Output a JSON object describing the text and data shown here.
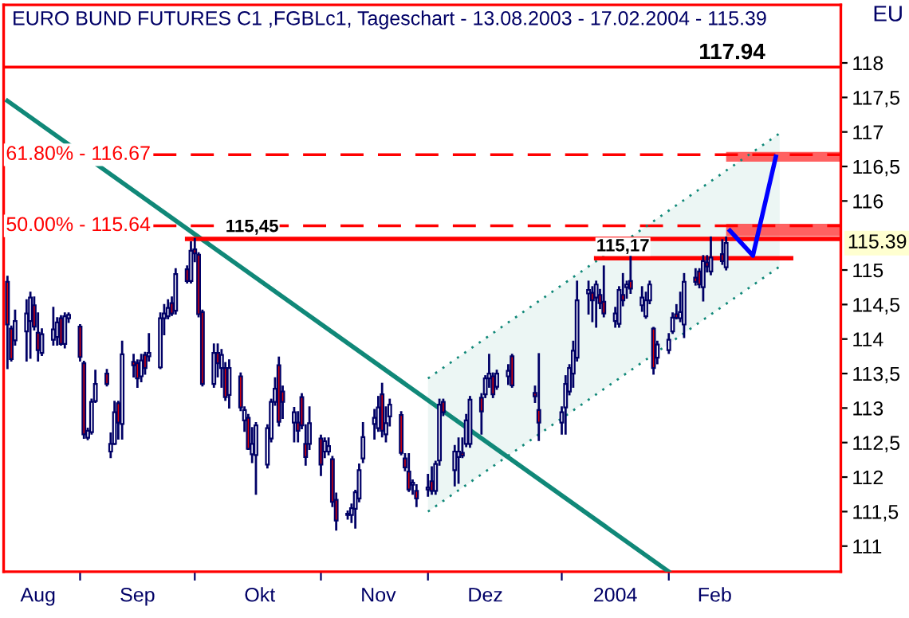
{
  "chart_data": {
    "type": "candlestick",
    "title": "EURO BUND FUTURES C1 ,FGBLc1, Tageschart - 13.08.2003 - 17.02.2004 - 115.39",
    "color": "#000066",
    "x": [
      "2003-08-13",
      "2003-08-14",
      "2003-08-15",
      "2003-08-18",
      "2003-08-19",
      "2003-08-20",
      "2003-08-21",
      "2003-08-22",
      "2003-08-25",
      "2003-08-26",
      "2003-08-27",
      "2003-08-28",
      "2003-08-29",
      "2003-09-01",
      "2003-09-02",
      "2003-09-03",
      "2003-09-04",
      "2003-09-05",
      "2003-09-08",
      "2003-09-09",
      "2003-09-10",
      "2003-09-11",
      "2003-09-12",
      "2003-09-15",
      "2003-09-16",
      "2003-09-17",
      "2003-09-18",
      "2003-09-19",
      "2003-09-22",
      "2003-09-23",
      "2003-09-24",
      "2003-09-25",
      "2003-09-26",
      "2003-09-29",
      "2003-09-30",
      "2003-10-01",
      "2003-10-02",
      "2003-10-03",
      "2003-10-06",
      "2003-10-07",
      "2003-10-08",
      "2003-10-09",
      "2003-10-10",
      "2003-10-13",
      "2003-10-14",
      "2003-10-15",
      "2003-10-16",
      "2003-10-17",
      "2003-10-20",
      "2003-10-21",
      "2003-10-22",
      "2003-10-23",
      "2003-10-24",
      "2003-10-27",
      "2003-10-28",
      "2003-10-29",
      "2003-10-30",
      "2003-10-31",
      "2003-11-03",
      "2003-11-04",
      "2003-11-05",
      "2003-11-06",
      "2003-11-07",
      "2003-11-10",
      "2003-11-11",
      "2003-11-12",
      "2003-11-13",
      "2003-11-14",
      "2003-11-17",
      "2003-11-18",
      "2003-11-19",
      "2003-11-20",
      "2003-11-21",
      "2003-11-24",
      "2003-11-25",
      "2003-11-26",
      "2003-11-27",
      "2003-11-28",
      "2003-12-01",
      "2003-12-02",
      "2003-12-03",
      "2003-12-04",
      "2003-12-05",
      "2003-12-08",
      "2003-12-09",
      "2003-12-10",
      "2003-12-11",
      "2003-12-12",
      "2003-12-15",
      "2003-12-16",
      "2003-12-17",
      "2003-12-18",
      "2003-12-19",
      "2003-12-22",
      "2003-12-23",
      "2003-12-29",
      "2003-12-30",
      "2004-01-05",
      "2004-01-06",
      "2004-01-07",
      "2004-01-08",
      "2004-01-09",
      "2004-01-12",
      "2004-01-13",
      "2004-01-14",
      "2004-01-15",
      "2004-01-16",
      "2004-01-19",
      "2004-01-20",
      "2004-01-21",
      "2004-01-22",
      "2004-01-23",
      "2004-01-26",
      "2004-01-27",
      "2004-01-28",
      "2004-01-29",
      "2004-01-30",
      "2004-02-02",
      "2004-02-03",
      "2004-02-04",
      "2004-02-05",
      "2004-02-06",
      "2004-02-09",
      "2004-02-10",
      "2004-02-11",
      "2004-02-12",
      "2004-02-13",
      "2004-02-16",
      "2004-02-17"
    ],
    "ohlc": [
      [
        114.83,
        114.9,
        113.58,
        114.21
      ],
      [
        114.15,
        114.18,
        113.69,
        113.71
      ],
      [
        113.98,
        114.41,
        113.92,
        114.26
      ],
      [
        114.11,
        114.56,
        113.69,
        114.37
      ],
      [
        114.26,
        114.67,
        113.73,
        114.6
      ],
      [
        114.49,
        114.6,
        114.14,
        114.18
      ],
      [
        114.09,
        114.37,
        113.69,
        113.84
      ],
      [
        113.8,
        114.14,
        113.77,
        114.07
      ],
      [
        113.99,
        114.45,
        113.92,
        114.14
      ],
      [
        114.03,
        114.3,
        113.92,
        114.24
      ],
      [
        114.3,
        114.33,
        113.92,
        113.93
      ],
      [
        113.93,
        114.37,
        113.88,
        114.33
      ],
      [
        114.3,
        114.37,
        114.25,
        114.35
      ],
      [
        114.18,
        114.2,
        113.69,
        113.74
      ],
      [
        113.65,
        113.67,
        112.57,
        112.62
      ],
      [
        112.57,
        112.7,
        112.55,
        112.67
      ],
      [
        112.65,
        113.12,
        112.63,
        113.09
      ],
      [
        113.1,
        113.54,
        113.09,
        113.35
      ],
      [
        113.5,
        113.55,
        113.33,
        113.35
      ],
      [
        112.37,
        112.63,
        112.29,
        112.48
      ],
      [
        112.48,
        113.09,
        112.48,
        112.94
      ],
      [
        113.07,
        113.09,
        112.56,
        112.79
      ],
      [
        112.77,
        113.96,
        112.56,
        113.78
      ],
      [
        113.67,
        113.77,
        113.46,
        113.62
      ],
      [
        113.65,
        113.69,
        113.31,
        113.43
      ],
      [
        113.46,
        113.77,
        113.39,
        113.69
      ],
      [
        113.77,
        113.8,
        113.5,
        113.58
      ],
      [
        113.75,
        114.07,
        113.69,
        113.8
      ],
      [
        113.59,
        114.37,
        113.58,
        114.3
      ],
      [
        114.3,
        114.49,
        114.07,
        114.37
      ],
      [
        114.33,
        114.56,
        114.3,
        114.45
      ],
      [
        114.52,
        114.6,
        114.35,
        114.37
      ],
      [
        114.41,
        115.01,
        114.37,
        114.94
      ],
      [
        115.01,
        115.05,
        114.82,
        114.84
      ],
      [
        114.84,
        115.4,
        114.82,
        115.28
      ],
      [
        115.3,
        115.45,
        115.13,
        115.24
      ],
      [
        115.22,
        115.24,
        114.33,
        114.36
      ],
      [
        114.39,
        114.41,
        113.33,
        113.35
      ],
      [
        113.35,
        113.92,
        113.31,
        113.8
      ],
      [
        113.8,
        113.92,
        113.46,
        113.65
      ],
      [
        113.58,
        113.84,
        113.31,
        113.77
      ],
      [
        113.58,
        113.65,
        113.12,
        113.16
      ],
      [
        113.19,
        113.69,
        113.01,
        113.58
      ],
      [
        113.46,
        113.5,
        112.97,
        113.01
      ],
      [
        112.82,
        113.01,
        112.67,
        112.97
      ],
      [
        112.86,
        112.9,
        112.41,
        112.41
      ],
      [
        112.33,
        112.71,
        112.22,
        112.48
      ],
      [
        112.32,
        112.78,
        111.76,
        112.75
      ],
      [
        112.18,
        112.75,
        112.14,
        112.71
      ],
      [
        112.56,
        113.12,
        112.52,
        113.09
      ],
      [
        113.09,
        113.43,
        113.05,
        113.28
      ],
      [
        113.62,
        113.73,
        112.75,
        112.8
      ],
      [
        113.24,
        113.31,
        112.86,
        113.09
      ],
      [
        112.79,
        113.0,
        112.52,
        112.94
      ],
      [
        112.79,
        112.94,
        112.52,
        112.67
      ],
      [
        113.16,
        113.2,
        112.71,
        112.75
      ],
      [
        112.48,
        112.75,
        112.18,
        112.29
      ],
      [
        112.48,
        113.01,
        112.41,
        112.78
      ],
      [
        112.56,
        112.6,
        112.03,
        112.18
      ],
      [
        112.37,
        112.56,
        112.29,
        112.52
      ],
      [
        112.37,
        112.56,
        112.33,
        112.45
      ],
      [
        112.26,
        112.29,
        111.58,
        111.64
      ],
      [
        111.67,
        111.76,
        111.24,
        111.37
      ],
      [
        111.47,
        111.5,
        111.4,
        111.45
      ],
      [
        111.45,
        111.6,
        111.35,
        111.55
      ],
      [
        111.54,
        111.8,
        111.27,
        111.78
      ],
      [
        111.69,
        112.18,
        111.65,
        112.1
      ],
      [
        112.27,
        112.78,
        112.22,
        112.58
      ],
      [
        112.77,
        112.97,
        112.56,
        112.86
      ],
      [
        112.71,
        113.16,
        112.67,
        113.01
      ],
      [
        113.2,
        113.35,
        112.59,
        112.67
      ],
      [
        112.62,
        113.01,
        112.52,
        112.78
      ],
      [
        112.88,
        113.12,
        112.75,
        113.05
      ],
      [
        112.9,
        112.94,
        112.33,
        112.35
      ],
      [
        112.27,
        112.33,
        112.1,
        112.14
      ],
      [
        112.08,
        112.33,
        111.8,
        111.82
      ],
      [
        111.89,
        111.95,
        111.76,
        111.92
      ],
      [
        111.8,
        111.88,
        111.58,
        111.69
      ],
      [
        111.82,
        112.03,
        111.73,
        111.85
      ],
      [
        111.94,
        112.14,
        111.76,
        111.8
      ],
      [
        111.8,
        112.22,
        111.76,
        112.19
      ],
      [
        112.24,
        113.12,
        112.18,
        113.05
      ],
      [
        113.09,
        113.12,
        112.9,
        112.94
      ],
      [
        112.1,
        112.45,
        111.88,
        112.37
      ],
      [
        112.29,
        112.56,
        111.92,
        112.37
      ],
      [
        112.35,
        112.56,
        112.29,
        112.31
      ],
      [
        112.48,
        112.9,
        112.45,
        112.82
      ],
      [
        112.48,
        113.16,
        112.44,
        113.12
      ],
      [
        113.15,
        113.2,
        112.63,
        112.95
      ],
      [
        113.2,
        113.46,
        113.16,
        113.43
      ],
      [
        113.43,
        113.77,
        113.31,
        113.5
      ],
      [
        113.46,
        113.5,
        113.16,
        113.2
      ],
      [
        113.31,
        113.54,
        113.28,
        113.5
      ],
      [
        113.46,
        113.62,
        113.35,
        113.54
      ],
      [
        113.75,
        113.77,
        113.31,
        113.33
      ],
      [
        113.22,
        113.31,
        113.09,
        113.17
      ],
      [
        112.97,
        113.78,
        112.54,
        112.79
      ],
      [
        112.79,
        113.01,
        112.63,
        112.94
      ],
      [
        113.01,
        113.46,
        112.63,
        113.35
      ],
      [
        113.24,
        113.62,
        113.2,
        113.58
      ],
      [
        113.5,
        113.96,
        113.31,
        113.83
      ],
      [
        113.73,
        114.83,
        113.69,
        114.56
      ],
      [
        114.66,
        114.83,
        114.37,
        114.71
      ],
      [
        114.67,
        114.75,
        114.26,
        114.56
      ],
      [
        114.6,
        114.83,
        114.18,
        114.79
      ],
      [
        114.64,
        114.71,
        114.45,
        114.52
      ],
      [
        114.54,
        115.05,
        114.33,
        114.37
      ],
      [
        114.26,
        114.45,
        114.18,
        114.37
      ],
      [
        114.22,
        114.75,
        114.18,
        114.71
      ],
      [
        114.64,
        114.94,
        114.49,
        114.56
      ],
      [
        114.75,
        114.83,
        114.6,
        114.79
      ],
      [
        114.84,
        115.23,
        114.67,
        114.73
      ],
      [
        114.49,
        114.75,
        114.41,
        114.6
      ],
      [
        114.33,
        114.67,
        114.31,
        114.56
      ],
      [
        114.56,
        114.83,
        114.52,
        114.79
      ],
      [
        114.15,
        114.16,
        113.5,
        113.58
      ],
      [
        113.73,
        113.96,
        113.65,
        113.92
      ],
      [
        113.84,
        114.07,
        113.8,
        113.99
      ],
      [
        114.11,
        114.37,
        114.09,
        114.31
      ],
      [
        114.36,
        114.49,
        114.3,
        114.31
      ],
      [
        114.3,
        114.67,
        114.26,
        114.39
      ],
      [
        114.21,
        114.94,
        114.03,
        114.83
      ],
      [
        114.89,
        115.01,
        114.79,
        114.83
      ],
      [
        114.98,
        115.01,
        114.75,
        114.79
      ],
      [
        114.75,
        115.2,
        114.56,
        115.13
      ],
      [
        115.11,
        115.2,
        114.98,
        115.05
      ],
      [
        114.98,
        115.47,
        114.94,
        115.18
      ],
      [
        115.23,
        115.43,
        115.09,
        115.13
      ],
      [
        115.04,
        115.47,
        115.01,
        115.39
      ]
    ],
    "series": [
      {
        "type": "line",
        "color": "#108878",
        "x": [
          "2003-08-13",
          "2004-02-02"
        ],
        "values": [
          117.45,
          110.63
        ]
      },
      {
        "type": "line",
        "color": "#108878",
        "line_style": "dotted",
        "x": [
          "2003-12-01",
          "2004-03-02"
        ],
        "values": [
          113.43,
          116.98
        ]
      },
      {
        "type": "line",
        "color": "#108878",
        "line_style": "dotted",
        "x": [
          "2003-12-01",
          "2004-03-02"
        ],
        "values": [
          111.5,
          115.05
        ],
        "lower": [
          111.5,
          115.05
        ],
        "upper": [
          113.43,
          116.98
        ]
      },
      {
        "type": "line",
        "color": "#ff0000",
        "x": [
          "2003-09-29",
          "2004-03-18"
        ],
        "values": [
          115.45,
          115.45
        ]
      },
      {
        "type": "line",
        "color": "#ff0000",
        "x": [
          "2004-01-14",
          "2004-03-05"
        ],
        "values": [
          115.17,
          115.17
        ]
      },
      {
        "type": "line",
        "color": "#0000ff",
        "x": [
          "2004-02-18",
          "2004-02-24",
          "2004-03-01"
        ],
        "values": [
          115.57,
          115.21,
          116.64
        ]
      }
    ],
    "ref_lines": [
      {
        "axis": "y",
        "value": 117.94,
        "label": "117.94",
        "color": "#ff0000",
        "line_style": "solid"
      },
      {
        "axis": "y",
        "value": 116.67,
        "color": "#ff0000",
        "line_style": "dashed"
      },
      {
        "axis": "y",
        "value": 115.64,
        "color": "#ff0000",
        "line_style": "dashed"
      }
    ],
    "bands": [
      {
        "axis": "y",
        "from": 115.49,
        "to": 115.67,
        "color": "#ff5050"
      },
      {
        "axis": "y",
        "from": 116.57,
        "to": 116.71,
        "color": "#ff5050"
      }
    ],
    "annotations": [
      {
        "text": "61.80% - 116.67",
        "x": "2003-08-12",
        "y": 116.67
      },
      {
        "text": "50.00% - 115.64",
        "x": "2003-08-12",
        "y": 115.64
      },
      {
        "text": "115,45",
        "x": "2003-10-16",
        "y": 115.45
      },
      {
        "text": "115,17",
        "x": "2004-01-21",
        "y": 115.17
      },
      {
        "text": "115.39",
        "y": 115.39
      },
      "EU"
    ],
    "xlim": [
      "2003-08-12",
      "2004-03-18"
    ],
    "xticks": [
      {
        "value": "2003-08-21",
        "label": "Aug"
      },
      {
        "value": "2003-09-01",
        "label": null
      },
      {
        "value": "2003-09-16",
        "label": "Sep"
      },
      {
        "value": "2003-10-01",
        "label": null
      },
      {
        "value": "2003-10-18",
        "label": "Okt"
      },
      {
        "value": "2003-11-03",
        "label": null
      },
      {
        "value": "2003-11-18",
        "label": "Nov"
      },
      {
        "value": "2003-12-01",
        "label": null
      },
      {
        "value": "2003-12-16",
        "label": "Dez"
      },
      {
        "value": "2004-01-05",
        "label": null
      },
      {
        "value": "2004-01-19",
        "label": "2004"
      },
      {
        "value": "2004-02-02",
        "label": null
      },
      {
        "value": "2004-02-14",
        "label": "Feb"
      }
    ],
    "ylim": [
      110.63,
      118.84
    ],
    "yticks": [
      111,
      {
        "value": 111.5,
        "label": "111,5"
      },
      112,
      {
        "value": 112.5,
        "label": "112,5"
      },
      113,
      {
        "value": 113.5,
        "label": "113,5"
      },
      114,
      {
        "value": 114.5,
        "label": "114,5"
      },
      115,
      116,
      {
        "value": 116.5,
        "label": "116,5"
      },
      117,
      {
        "value": 117.5,
        "label": "117,5"
      },
      118
    ],
    "grid": false,
    "legend": false
  }
}
